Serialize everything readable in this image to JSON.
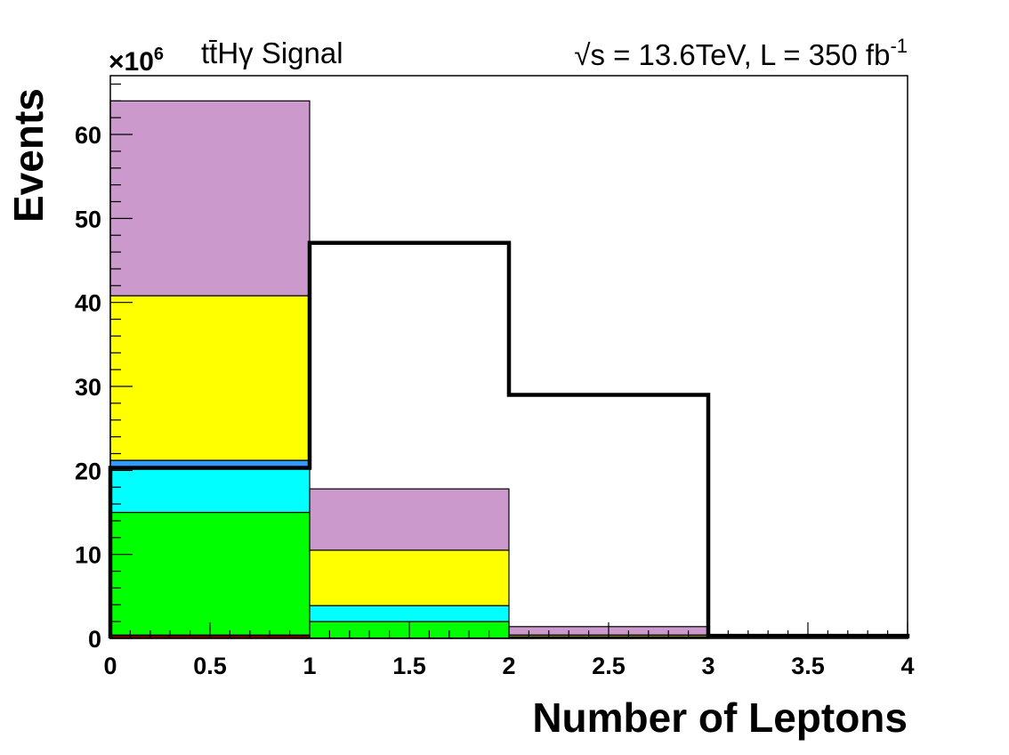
{
  "header": {
    "left_text": "tt̄Hγ Signal",
    "right_main": "√s = 13.6TeV, L = 350 fb",
    "right_sup": "-1"
  },
  "chart_data": {
    "type": "bar",
    "histogram": true,
    "stacked": true,
    "bin_edges": [
      0,
      1,
      2,
      3,
      4
    ],
    "xlabel": "Number of Leptons",
    "ylabel": "Events",
    "y_multiplier": "×10",
    "y_multiplier_exp": "6",
    "xlim": [
      0,
      4
    ],
    "ylim": [
      0,
      67
    ],
    "x_ticks": [
      "0",
      "0.5",
      "1",
      "1.5",
      "2",
      "2.5",
      "3",
      "3.5",
      "4"
    ],
    "y_ticks": [
      "0",
      "10",
      "20",
      "30",
      "40",
      "50",
      "60"
    ],
    "grid": false,
    "stack_series": [
      {
        "values": [
          0.4,
          0.05,
          0.0,
          0.0
        ],
        "color": "#660000"
      },
      {
        "values": [
          14.6,
          1.95,
          0.1,
          0.0
        ],
        "color": "#00ff00"
      },
      {
        "values": [
          5.2,
          1.9,
          0.1,
          0.0
        ],
        "color": "#00ffff"
      },
      {
        "values": [
          1.0,
          0.0,
          0.0,
          0.0
        ],
        "color": "#3399ff"
      },
      {
        "values": [
          19.6,
          6.6,
          0.2,
          0.0
        ],
        "color": "#ffff00"
      },
      {
        "values": [
          23.2,
          7.3,
          1.0,
          0.0
        ],
        "color": "#cc99cc"
      }
    ],
    "signal_line": {
      "values": [
        20.3,
        47.1,
        29.0,
        0.3
      ],
      "color": "#000000"
    }
  }
}
